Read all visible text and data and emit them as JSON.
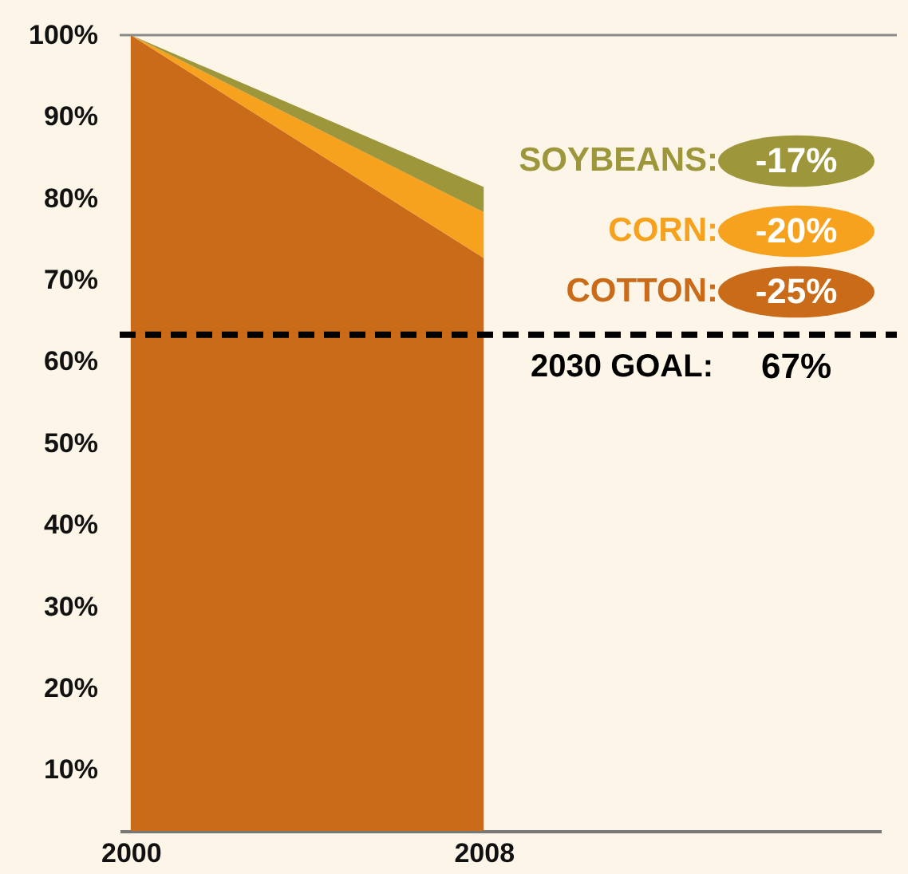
{
  "chart_data": {
    "type": "area",
    "x": [
      2000,
      2008
    ],
    "series": [
      {
        "name": "COTTON:",
        "color": "#c96b18",
        "values": [
          100,
          72.7
        ]
      },
      {
        "name": "CORN:",
        "color": "#f6a21e",
        "values": [
          100,
          78.3
        ]
      },
      {
        "name": "SOYBEANS:",
        "color": "#9d963b",
        "values": [
          100,
          81.4
        ]
      }
    ],
    "annotations": [
      "-25%",
      "-20%",
      "-17%",
      "67%"
    ],
    "xlim": [
      1999.75,
      2017
    ],
    "xticks": [
      2000,
      2008
    ],
    "ylim": [
      2.5,
      100
    ],
    "yticks": [
      {
        "value": 10,
        "label": "10%"
      },
      {
        "value": 20,
        "label": "20%"
      },
      {
        "value": 30,
        "label": "30%"
      },
      {
        "value": 40,
        "label": "40%"
      },
      {
        "value": 50,
        "label": "50%"
      },
      {
        "value": 60,
        "label": "60%"
      },
      {
        "value": 70,
        "label": "70%"
      },
      {
        "value": 80,
        "label": "80%"
      },
      {
        "value": 90,
        "label": "90%"
      },
      {
        "value": 100,
        "label": "100%"
      }
    ],
    "ref_lines": [
      {
        "axis": "y",
        "value": 100,
        "color": "#8a8a8a",
        "line_style": "solid"
      },
      {
        "axis": "y",
        "value": 63.3,
        "label": "2030 GOAL:",
        "color": "#000000",
        "line_style": "dashed"
      }
    ],
    "grid": false,
    "legend": "right"
  }
}
